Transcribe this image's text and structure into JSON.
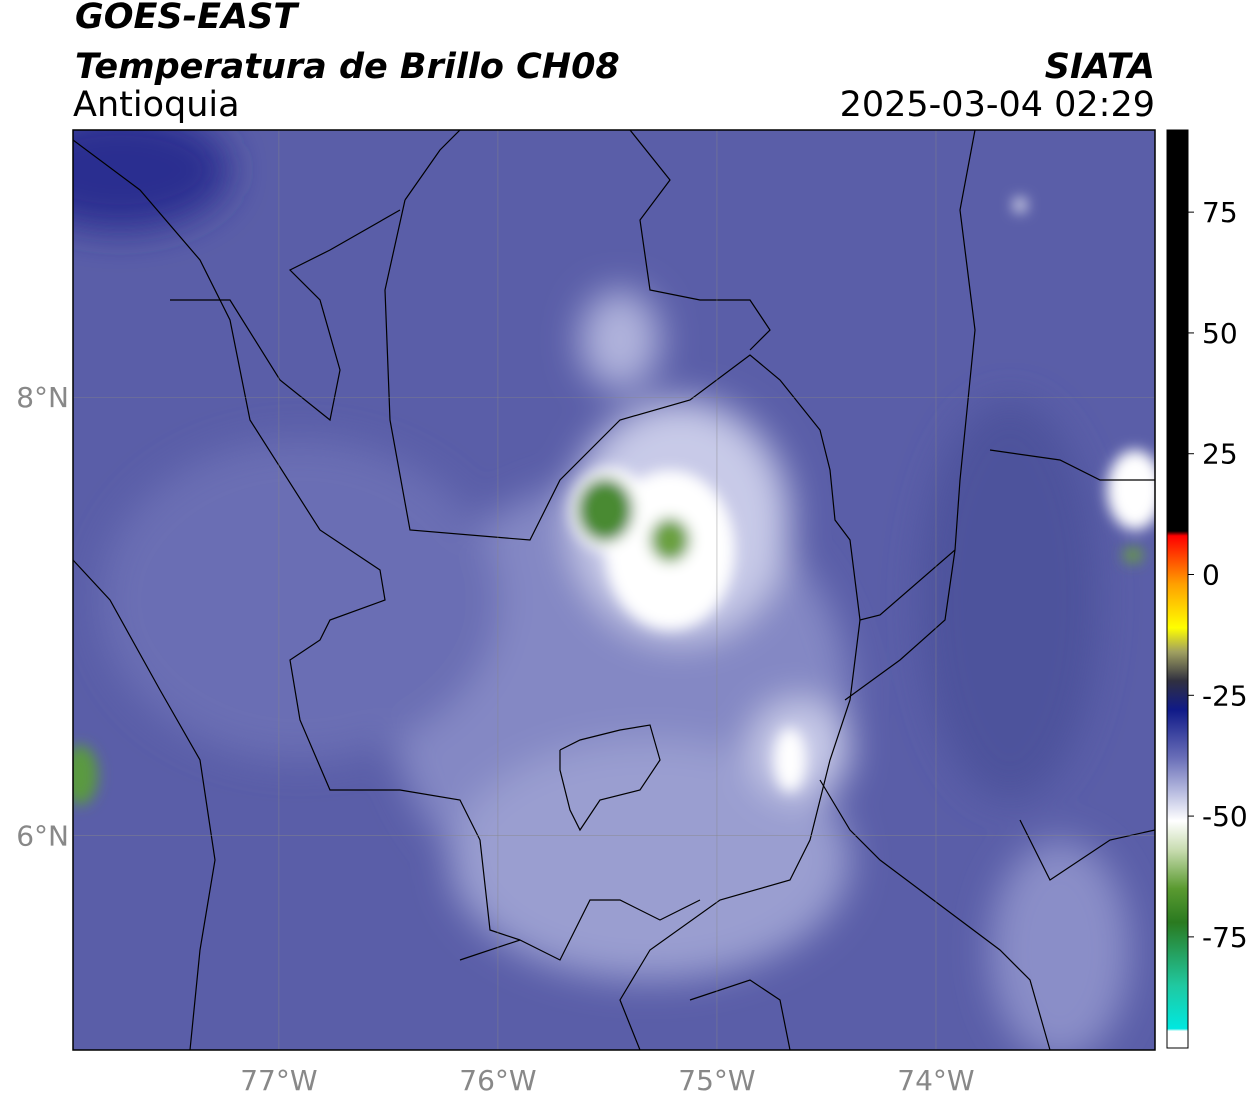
{
  "header": {
    "title": "GOES-EAST",
    "subtitle": "Temperatura de Brillo CH08",
    "region": "Antioquia",
    "brand": "SIATA",
    "timestamp": "2025-03-04 02:29"
  },
  "map": {
    "lonlim": [
      -77.94,
      -73.0
    ],
    "latlim": [
      5.02,
      9.22
    ],
    "xticks": [
      {
        "value": -77,
        "label": "77°W"
      },
      {
        "value": -76,
        "label": "76°W"
      },
      {
        "value": -75,
        "label": "75°W"
      },
      {
        "value": -74,
        "label": "74°W"
      }
    ],
    "yticks": [
      {
        "value": 6,
        "label": "6°N"
      },
      {
        "value": 8,
        "label": "8°N"
      }
    ],
    "grid": true
  },
  "colorbar": {
    "lim": [
      -98,
      92
    ],
    "ticks": [
      75,
      50,
      25,
      0,
      -25,
      -50,
      -75
    ],
    "stops": [
      {
        "value": -98,
        "color": "#ffffff"
      },
      {
        "value": -94.5,
        "color": "#ffffff"
      },
      {
        "value": -94,
        "color": "#00e8e0"
      },
      {
        "value": -85,
        "color": "#20c8a0"
      },
      {
        "value": -72,
        "color": "#2a7a20"
      },
      {
        "value": -65,
        "color": "#5a9a30"
      },
      {
        "value": -57,
        "color": "#c8dcb0"
      },
      {
        "value": -51,
        "color": "#ffffff"
      },
      {
        "value": -45,
        "color": "#b8bce0"
      },
      {
        "value": -38,
        "color": "#6a6fb8"
      },
      {
        "value": -28,
        "color": "#101a88"
      },
      {
        "value": -22,
        "color": "#303040"
      },
      {
        "value": -16,
        "color": "#a0a060"
      },
      {
        "value": -11,
        "color": "#ffff00"
      },
      {
        "value": -2,
        "color": "#ffa000"
      },
      {
        "value": 8,
        "color": "#ff0000"
      },
      {
        "value": 9,
        "color": "#000000"
      },
      {
        "value": 92,
        "color": "#000000"
      }
    ]
  }
}
